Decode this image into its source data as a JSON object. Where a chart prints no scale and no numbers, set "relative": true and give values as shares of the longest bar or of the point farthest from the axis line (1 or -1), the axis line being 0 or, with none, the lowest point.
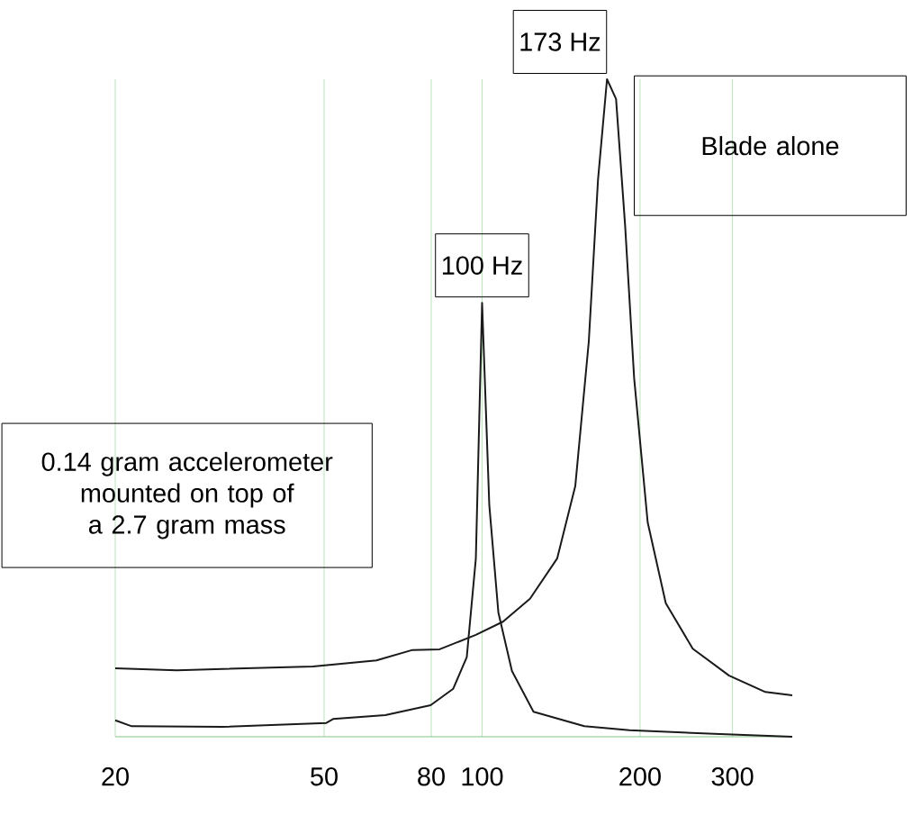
{
  "chart_data": {
    "type": "line",
    "relative": true,
    "log": "x",
    "xlim": [
      20,
      390
    ],
    "xticks": [
      20,
      50,
      80,
      100,
      200,
      300
    ],
    "grid": "x",
    "marker": "none",
    "line_style": "solid",
    "series": [
      {
        "color": "#1a1a1a",
        "x": [
          20,
          26.2,
          47.6,
          62.9,
          73.7,
          83,
          97.3,
          109.6,
          123.4,
          139,
          150.5,
          159.7,
          166.3,
          173,
          180,
          187.3,
          194.9,
          206.8,
          223.9,
          252,
          295.6,
          346.6,
          390
        ],
        "values": [
          0.104,
          0.101,
          0.107,
          0.116,
          0.132,
          0.133,
          0.155,
          0.175,
          0.21,
          0.271,
          0.381,
          0.601,
          0.847,
          1,
          0.97,
          0.778,
          0.545,
          0.326,
          0.203,
          0.134,
          0.093,
          0.068,
          0.063
        ]
      },
      {
        "color": "#1a1a1a",
        "x": [
          20,
          21.5,
          32,
          50.5,
          52,
          65.4,
          79.8,
          88.1,
          93.5,
          97.3,
          100,
          103.2,
          107.4,
          114,
          125.3,
          156.6,
          191,
          284,
          390
        ],
        "values": [
          0.025,
          0.016,
          0.015,
          0.021,
          0.027,
          0.033,
          0.048,
          0.073,
          0.121,
          0.271,
          0.66,
          0.353,
          0.189,
          0.1,
          0.038,
          0.016,
          0.01,
          0.004,
          0
        ]
      }
    ],
    "annotations": [
      {
        "text": "173 Hz",
        "x": 173,
        "y": 1
      },
      {
        "text": "100 Hz",
        "x": 100,
        "y": 0.66
      },
      "Blade alone",
      "0.14 gram accelerometer mounted on top of a 2.7 gram mass"
    ]
  }
}
